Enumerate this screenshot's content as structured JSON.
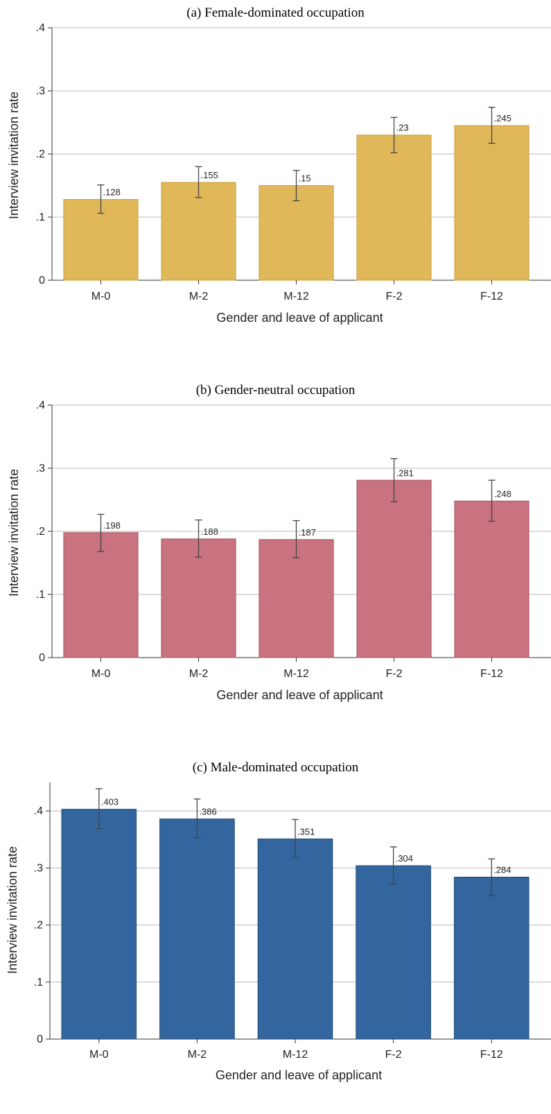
{
  "chart_data": [
    {
      "type": "bar",
      "title": "(a) Female-dominated occupation",
      "xlabel": "Gender and leave of applicant",
      "ylabel": "Interview invitation rate",
      "categories": [
        "M-0",
        "M-2",
        "M-12",
        "F-2",
        "F-12"
      ],
      "values": [
        0.128,
        0.155,
        0.15,
        0.23,
        0.245
      ],
      "value_labels": [
        ".128",
        ".155",
        ".15",
        ".23",
        ".245"
      ],
      "ci_low": [
        0.106,
        0.131,
        0.126,
        0.202,
        0.217
      ],
      "ci_high": [
        0.151,
        0.18,
        0.174,
        0.258,
        0.274
      ],
      "ylim": [
        0,
        0.4
      ],
      "yticks": [
        0,
        0.1,
        0.2,
        0.3,
        0.4
      ],
      "ytick_labels": [
        "0",
        ".1",
        ".2",
        ".3",
        ".4"
      ],
      "grid": true,
      "bar_color": "#e0b85a",
      "bar_edge": "#c9a13e"
    },
    {
      "type": "bar",
      "title": "(b) Gender-neutral occupation",
      "xlabel": "Gender and leave of applicant",
      "ylabel": "Interview invitation rate",
      "categories": [
        "M-0",
        "M-2",
        "M-12",
        "F-2",
        "F-12"
      ],
      "values": [
        0.198,
        0.188,
        0.187,
        0.281,
        0.248
      ],
      "value_labels": [
        ".198",
        ".188",
        ".187",
        ".281",
        ".248"
      ],
      "ci_low": [
        0.168,
        0.159,
        0.158,
        0.247,
        0.216
      ],
      "ci_high": [
        0.227,
        0.218,
        0.217,
        0.315,
        0.281
      ],
      "ylim": [
        0,
        0.4
      ],
      "yticks": [
        0,
        0.1,
        0.2,
        0.3,
        0.4
      ],
      "ytick_labels": [
        "0",
        ".1",
        ".2",
        ".3",
        ".4"
      ],
      "grid": true,
      "bar_color": "#c8737f",
      "bar_edge": "#a95561"
    },
    {
      "type": "bar",
      "title": "(c) Male-dominated occupation",
      "xlabel": "Gender and leave of applicant",
      "ylabel": "Interview invitation rate",
      "categories": [
        "M-0",
        "M-2",
        "M-12",
        "F-2",
        "F-12"
      ],
      "values": [
        0.403,
        0.386,
        0.351,
        0.304,
        0.284
      ],
      "value_labels": [
        ".403",
        ".386",
        ".351",
        ".304",
        ".284"
      ],
      "ci_low": [
        0.369,
        0.353,
        0.318,
        0.272,
        0.252
      ],
      "ci_high": [
        0.439,
        0.421,
        0.385,
        0.337,
        0.316
      ],
      "ylim": [
        0,
        0.45
      ],
      "yticks": [
        0,
        0.1,
        0.2,
        0.3,
        0.4
      ],
      "ytick_labels": [
        "0",
        ".1",
        ".2",
        ".3",
        ".4"
      ],
      "grid": true,
      "bar_color": "#33669e",
      "bar_edge": "#234b78"
    }
  ]
}
